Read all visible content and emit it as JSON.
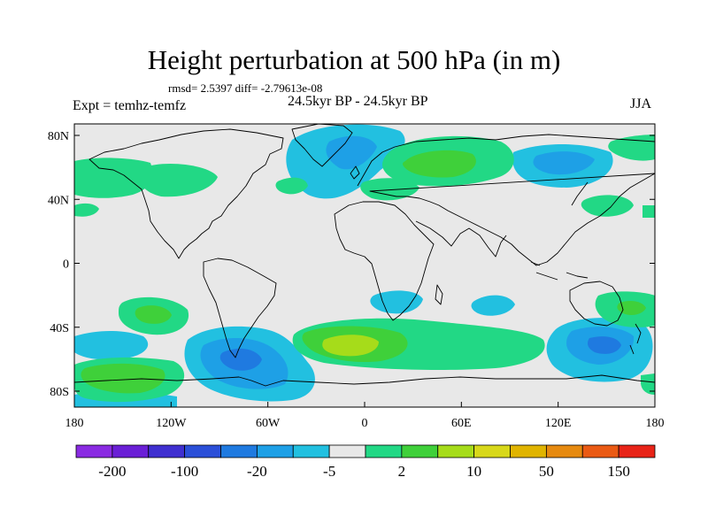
{
  "header": {
    "title": "Height perturbation at 500 hPa (in m)",
    "stats": "rmsd= 2.5397 diff= -2.79613e-08",
    "experiment": "Expt = temhz-temfz",
    "period": "24.5kyr BP - 24.5kyr BP",
    "season": "JJA"
  },
  "map": {
    "x_ticks": [
      "180",
      "120W",
      "60W",
      "0",
      "60E",
      "120E",
      "180"
    ],
    "y_ticks": [
      "80N",
      "40N",
      "0",
      "40S",
      "80S"
    ]
  },
  "colorbar": {
    "colors": [
      "#8a2be2",
      "#6a1fd6",
      "#3f2fd0",
      "#2b4fd8",
      "#1f7ae0",
      "#1ea0e6",
      "#22c0e0",
      "#e8e8e8",
      "#22d885",
      "#3fd03a",
      "#a6dc1a",
      "#d8d81a",
      "#e0b400",
      "#e68a10",
      "#ea5a14",
      "#e82418"
    ],
    "labels": [
      "-200",
      "-100",
      "-20",
      "-5",
      "2",
      "10",
      "50",
      "150"
    ]
  },
  "legend_palette": {
    "neg_light": "#22c0e0",
    "neg_mid": "#1ea0e6",
    "neg_strong": "#1f7ae0",
    "neutral": "#e8e8e8",
    "pos_light": "#22d885",
    "pos_mid": "#3fd03a",
    "pos_strong": "#a6dc1a"
  }
}
